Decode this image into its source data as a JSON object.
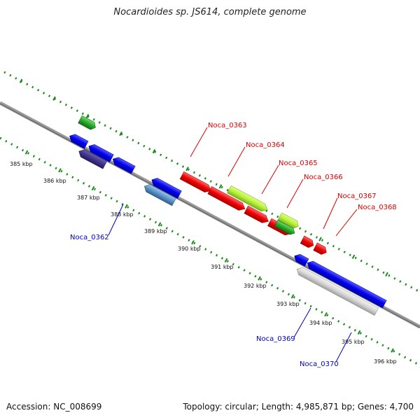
{
  "title": "Nocardioides sp. JS614, complete genome",
  "footer": {
    "accession": "Accession: NC_008699",
    "summary": "Topology: circular; Length: 4,985,871 bp; Genes: 4,700"
  },
  "colors": {
    "ruler_tick": "#1a8a1a",
    "forward_label": "#dd0000",
    "reverse_label": "#0000bb",
    "backbone": "#888888"
  },
  "kbp_labels": [
    "385 kbp",
    "386 kbp",
    "387 kbp",
    "388 kbp",
    "389 kbp",
    "390 kbp",
    "391 kbp",
    "392 kbp",
    "393 kbp",
    "394 kbp",
    "395 kbp",
    "396 kbp"
  ],
  "gene_labels": {
    "forward": [
      "Noca_0363",
      "Noca_0364",
      "Noca_0365",
      "Noca_0366",
      "Noca_0367",
      "Noca_0368"
    ],
    "reverse": [
      "Noca_0362",
      "Noca_0369",
      "Noca_0370"
    ]
  }
}
